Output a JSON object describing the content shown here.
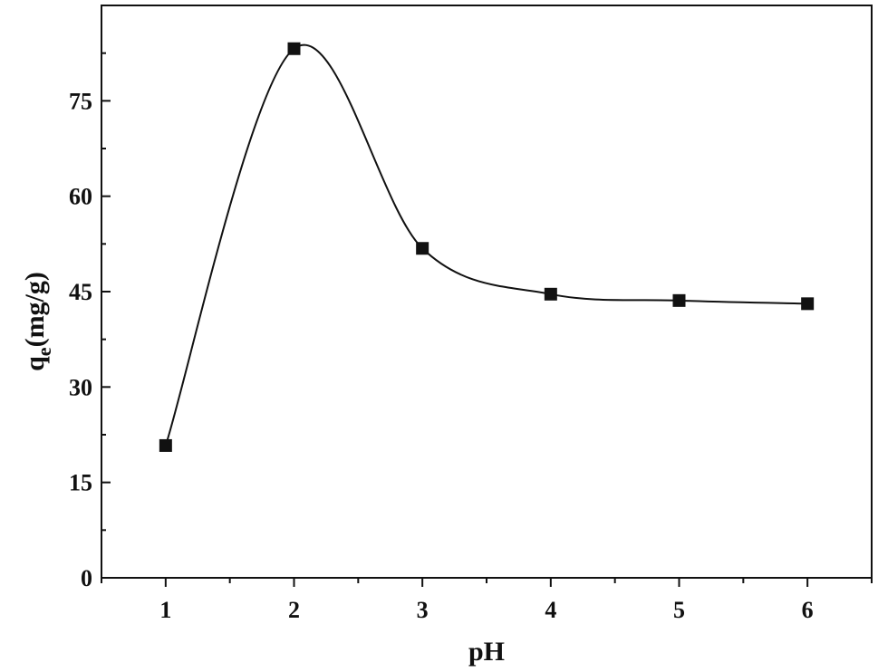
{
  "chart_data": {
    "type": "line",
    "xlabel": "pH",
    "ylabel_main": "q",
    "ylabel_sub": "e",
    "ylabel_rest": "(mg/g)",
    "xlim": [
      0.5,
      6.5
    ],
    "ylim": [
      0,
      90
    ],
    "x_ticks": [
      1,
      2,
      3,
      4,
      5,
      6
    ],
    "y_ticks": [
      0,
      15,
      30,
      45,
      60,
      75
    ],
    "grid": false,
    "legend": "none",
    "line_color": "#111111",
    "marker": "square",
    "series": [
      {
        "x": [
          1,
          2,
          3,
          4,
          5,
          6
        ],
        "y": [
          20.8,
          83.2,
          51.8,
          44.6,
          43.6,
          43.1
        ]
      }
    ]
  }
}
